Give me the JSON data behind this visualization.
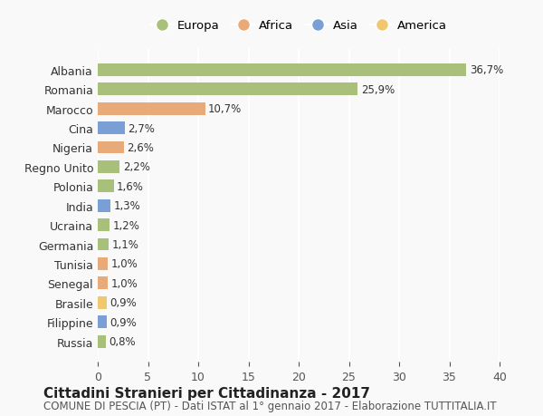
{
  "categories": [
    "Albania",
    "Romania",
    "Marocco",
    "Cina",
    "Nigeria",
    "Regno Unito",
    "Polonia",
    "India",
    "Ucraina",
    "Germania",
    "Tunisia",
    "Senegal",
    "Brasile",
    "Filippine",
    "Russia"
  ],
  "values": [
    36.7,
    25.9,
    10.7,
    2.7,
    2.6,
    2.2,
    1.6,
    1.3,
    1.2,
    1.1,
    1.0,
    1.0,
    0.9,
    0.9,
    0.8
  ],
  "labels": [
    "36,7%",
    "25,9%",
    "10,7%",
    "2,7%",
    "2,6%",
    "2,2%",
    "1,6%",
    "1,3%",
    "1,2%",
    "1,1%",
    "1,0%",
    "1,0%",
    "0,9%",
    "0,9%",
    "0,8%"
  ],
  "continents": [
    "Europa",
    "Europa",
    "Africa",
    "Asia",
    "Africa",
    "Europa",
    "Europa",
    "Asia",
    "Europa",
    "Europa",
    "Africa",
    "Africa",
    "America",
    "Asia",
    "Europa"
  ],
  "continent_colors": {
    "Europa": "#a8c07a",
    "Africa": "#e8aa78",
    "Asia": "#7a9fd4",
    "America": "#f0c96e"
  },
  "legend_order": [
    "Europa",
    "Africa",
    "Asia",
    "America"
  ],
  "title": "Cittadini Stranieri per Cittadinanza - 2017",
  "subtitle": "COMUNE DI PESCIA (PT) - Dati ISTAT al 1° gennaio 2017 - Elaborazione TUTTITALIA.IT",
  "xlim": [
    0,
    40
  ],
  "xticks": [
    0,
    5,
    10,
    15,
    20,
    25,
    30,
    35,
    40
  ],
  "background_color": "#f9f9f9",
  "grid_color": "#ffffff",
  "title_fontsize": 11,
  "subtitle_fontsize": 8.5,
  "label_fontsize": 8.5
}
